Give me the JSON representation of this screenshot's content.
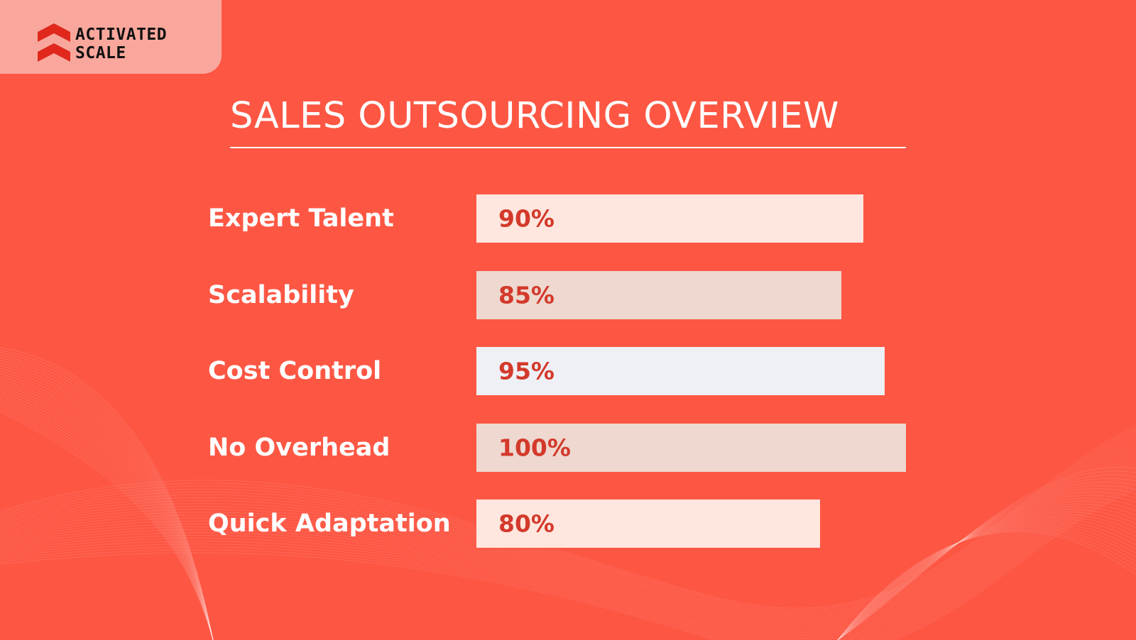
{
  "brand": {
    "line1": "ACTIVATED",
    "line2": "SCALE"
  },
  "chart_data": {
    "type": "bar",
    "orientation": "horizontal",
    "title": "SALES OUTSOURCING OVERVIEW",
    "categories": [
      "Expert Talent",
      "Scalability",
      "Cost Control",
      "No Overhead",
      "Quick Adaptation"
    ],
    "values": [
      90,
      85,
      95,
      100,
      80
    ],
    "value_labels": [
      "90%",
      "85%",
      "95%",
      "100%",
      "80%"
    ],
    "bar_colors": [
      "#ffe6de",
      "#eed8cf",
      "#eff0f5",
      "#eed8cf",
      "#ffe6de"
    ],
    "xlim": [
      0,
      100
    ],
    "grid": false
  },
  "colors": {
    "background": "#fd5744",
    "logo_panel": "#f9a79c",
    "value_text": "#d33a2c"
  }
}
